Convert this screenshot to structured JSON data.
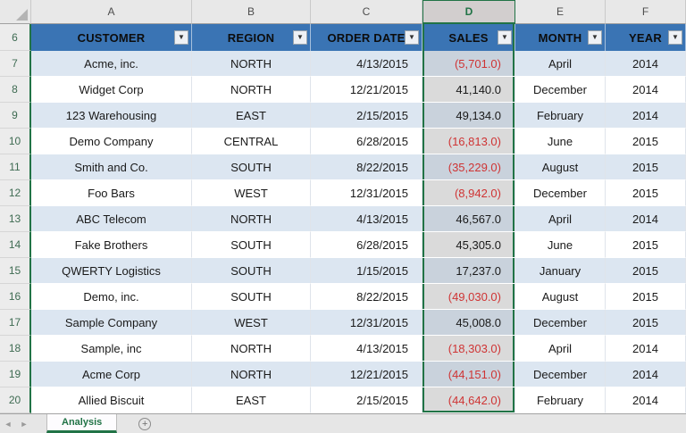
{
  "spreadsheet": {
    "column_letters": [
      "A",
      "B",
      "C",
      "D",
      "E",
      "F"
    ],
    "selected_column": "D",
    "header_row_num": "6",
    "headers": [
      {
        "key": "customer",
        "label": "CUSTOMER"
      },
      {
        "key": "region",
        "label": "REGION"
      },
      {
        "key": "order-date",
        "label": "ORDER DATE"
      },
      {
        "key": "sales",
        "label": "SALES"
      },
      {
        "key": "month",
        "label": "MONTH"
      },
      {
        "key": "year",
        "label": "YEAR"
      }
    ],
    "filter_icon": "▼",
    "rows": [
      {
        "num": "7",
        "cells": [
          "Acme, inc.",
          "NORTH",
          "4/13/2015",
          "(5,701.0)",
          "April",
          "2014"
        ]
      },
      {
        "num": "8",
        "cells": [
          "Widget Corp",
          "NORTH",
          "12/21/2015",
          "41,140.0",
          "December",
          "2014"
        ]
      },
      {
        "num": "9",
        "cells": [
          "123 Warehousing",
          "EAST",
          "2/15/2015",
          "49,134.0",
          "February",
          "2014"
        ]
      },
      {
        "num": "10",
        "cells": [
          "Demo Company",
          "CENTRAL",
          "6/28/2015",
          "(16,813.0)",
          "June",
          "2015"
        ]
      },
      {
        "num": "11",
        "cells": [
          "Smith and Co.",
          "SOUTH",
          "8/22/2015",
          "(35,229.0)",
          "August",
          "2015"
        ]
      },
      {
        "num": "12",
        "cells": [
          "Foo Bars",
          "WEST",
          "12/31/2015",
          "(8,942.0)",
          "December",
          "2015"
        ]
      },
      {
        "num": "13",
        "cells": [
          "ABC Telecom",
          "NORTH",
          "4/13/2015",
          "46,567.0",
          "April",
          "2014"
        ]
      },
      {
        "num": "14",
        "cells": [
          "Fake Brothers",
          "SOUTH",
          "6/28/2015",
          "45,305.0",
          "June",
          "2015"
        ]
      },
      {
        "num": "15",
        "cells": [
          "QWERTY Logistics",
          "SOUTH",
          "1/15/2015",
          "17,237.0",
          "January",
          "2015"
        ]
      },
      {
        "num": "16",
        "cells": [
          "Demo, inc.",
          "SOUTH",
          "8/22/2015",
          "(49,030.0)",
          "August",
          "2015"
        ]
      },
      {
        "num": "17",
        "cells": [
          "Sample Company",
          "WEST",
          "12/31/2015",
          "45,008.0",
          "December",
          "2015"
        ]
      },
      {
        "num": "18",
        "cells": [
          "Sample, inc",
          "NORTH",
          "4/13/2015",
          "(18,303.0)",
          "April",
          "2014"
        ]
      },
      {
        "num": "19",
        "cells": [
          "Acme Corp",
          "NORTH",
          "12/21/2015",
          "(44,151.0)",
          "December",
          "2014"
        ]
      },
      {
        "num": "20",
        "cells": [
          "Allied Biscuit",
          "EAST",
          "2/15/2015",
          "(44,642.0)",
          "February",
          "2014"
        ]
      }
    ]
  },
  "tab_bar": {
    "nav_left": "◄",
    "nav_right": "►",
    "active_tab": "Analysis",
    "new_sheet_label": "+"
  },
  "colors": {
    "header_blue": "#3a74b4",
    "band_blue": "#dce6f1",
    "selection_green": "#217346",
    "negative_red": "#cf3434",
    "selected_band": "#c9d2dc",
    "selected_plain": "#dadada"
  }
}
